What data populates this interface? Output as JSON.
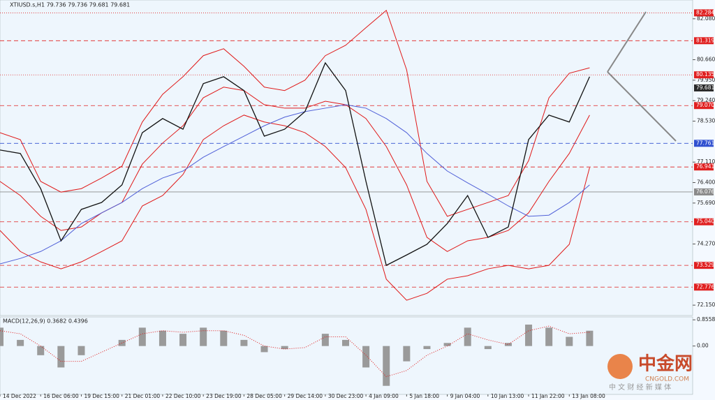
{
  "chart_data": [
    {
      "type": "line",
      "title": "XTIUSD.s,H1  79.736 79.736 79.681 79.681",
      "x": [
        0,
        2,
        4,
        6,
        8,
        10,
        12,
        14,
        16,
        18,
        20,
        22,
        24,
        26,
        28,
        30,
        32,
        34,
        36,
        38,
        40,
        42,
        44,
        46,
        48,
        50,
        52,
        54,
        56,
        58
      ],
      "xlim": [
        0,
        68
      ],
      "xticks": [
        {
          "value": 0,
          "label": "14 Dec 2022"
        },
        {
          "value": 4,
          "label": "16 Dec 06:00"
        },
        {
          "value": 8,
          "label": "19 Dec 15:00"
        },
        {
          "value": 12,
          "label": "21 Dec 01:00"
        },
        {
          "value": 16,
          "label": "22 Dec 10:00"
        },
        {
          "value": 20,
          "label": "23 Dec 19:00"
        },
        {
          "value": 24,
          "label": "28 Dec 05:00"
        },
        {
          "value": 28,
          "label": "29 Dec 14:00"
        },
        {
          "value": 32,
          "label": "30 Dec 23:00"
        },
        {
          "value": 36,
          "label": "4 Jan 09:00"
        },
        {
          "value": 40,
          "label": "5 Jan 18:00"
        },
        {
          "value": 44,
          "label": "9 Jan 04:00"
        },
        {
          "value": 48,
          "label": "10 Jan 13:00"
        },
        {
          "value": 52,
          "label": "11 Jan 22:00"
        },
        {
          "value": 56,
          "label": "13 Jan 08:00"
        }
      ],
      "ylim": [
        71.79,
        82.73
      ],
      "yticks": [
        {
          "value": 82.08,
          "label": "82.080"
        },
        {
          "value": 80.66,
          "label": "80.660"
        },
        {
          "value": 79.95,
          "label": "79.950"
        },
        {
          "value": 79.24,
          "label": "79.240"
        },
        {
          "value": 78.53,
          "label": "78.530"
        },
        {
          "value": 77.11,
          "label": "77.110"
        },
        {
          "value": 76.4,
          "label": "76.400"
        },
        {
          "value": 75.69,
          "label": "75.690"
        },
        {
          "value": 74.27,
          "label": "74.270"
        },
        {
          "value": 72.15,
          "label": "72.150"
        }
      ],
      "levels": [
        {
          "value": 82.284,
          "color": "#e02020",
          "style": "dotted"
        },
        {
          "value": 81.319,
          "color": "#e02020",
          "style": "dashed"
        },
        {
          "value": 80.135,
          "color": "#e02020",
          "style": "dotted"
        },
        {
          "value": 79.681,
          "color": "#2a2a2a",
          "style": "none"
        },
        {
          "value": 79.07,
          "label": "79.070",
          "color": "#e02020",
          "style": "dashed"
        },
        {
          "value": 77.761,
          "color": "#3050d0",
          "style": "dashed"
        },
        {
          "value": 76.941,
          "color": "#e02020",
          "style": "dashed"
        },
        {
          "value": 76.076,
          "color": "#8a8a8a",
          "style": "solid"
        },
        {
          "value": 75.04,
          "label": "75.040",
          "color": "#e02020",
          "style": "dashed"
        },
        {
          "value": 73.529,
          "color": "#e02020",
          "style": "dashed"
        },
        {
          "value": 72.776,
          "color": "#e02020",
          "style": "dashed"
        }
      ],
      "series": [
        {
          "color": "#e01818",
          "values": [
            78.13,
            77.89,
            76.44,
            76.07,
            76.19,
            76.56,
            76.97,
            78.5,
            79.46,
            80.07,
            80.8,
            81.04,
            80.43,
            79.71,
            79.59,
            79.95,
            80.8,
            81.16,
            81.77,
            82.37,
            80.31,
            76.44,
            75.23,
            75.47,
            75.71,
            75.95,
            77.16,
            79.34,
            80.19,
            80.38
          ]
        },
        {
          "color": "#e01818",
          "values": [
            76.44,
            75.95,
            75.23,
            74.74,
            74.86,
            75.35,
            75.71,
            77.04,
            77.77,
            78.37,
            79.34,
            79.71,
            79.59,
            79.1,
            78.98,
            78.98,
            79.22,
            79.1,
            78.62,
            77.65,
            76.32,
            74.5,
            74.01,
            74.38,
            74.5,
            74.74,
            75.35,
            76.44,
            77.41,
            78.74
          ]
        },
        {
          "color": "#e01818",
          "values": [
            74.74,
            74.01,
            73.65,
            73.41,
            73.65,
            74.01,
            74.38,
            75.59,
            75.95,
            76.68,
            77.89,
            78.37,
            78.74,
            78.5,
            78.37,
            78.13,
            77.65,
            76.92,
            75.47,
            73.05,
            72.32,
            72.56,
            73.05,
            73.17,
            73.41,
            73.53,
            73.41,
            73.53,
            74.26,
            76.92
          ]
        },
        {
          "color": "#5060d8",
          "values": [
            73.58,
            73.77,
            74.01,
            74.38,
            74.98,
            75.35,
            75.71,
            76.19,
            76.56,
            76.8,
            77.28,
            77.65,
            78.01,
            78.37,
            78.67,
            78.86,
            78.98,
            79.1,
            78.98,
            78.62,
            78.13,
            77.41,
            76.8,
            76.39,
            76.0,
            75.59,
            75.23,
            75.27,
            75.71,
            76.32
          ]
        },
        {
          "color": "#111111",
          "values": [
            77.53,
            77.41,
            76.19,
            74.38,
            75.47,
            75.71,
            76.32,
            78.13,
            78.62,
            78.25,
            79.83,
            80.07,
            79.59,
            78.01,
            78.25,
            78.86,
            80.55,
            79.59,
            76.44,
            73.53,
            73.89,
            74.26,
            74.98,
            75.95,
            74.5,
            74.86,
            77.89,
            78.74,
            78.5,
            80.07
          ]
        }
      ]
    },
    {
      "type": "macd",
      "title": "MACD(12,26,9) 0.3682 0.4396",
      "x": [
        0,
        2,
        4,
        6,
        8,
        10,
        12,
        14,
        16,
        18,
        20,
        22,
        24,
        26,
        28,
        30,
        32,
        34,
        36,
        38,
        40,
        42,
        44,
        46,
        48,
        50,
        52,
        54,
        56,
        58
      ],
      "xlim": [
        0,
        68
      ],
      "ylim": [
        -1.58,
        0.95
      ],
      "yticks": [
        0.8558,
        {
          "value": 0,
          "label": "0.00"
        }
      ],
      "series": [
        {
          "color": "#9a9a9a",
          "style": "bar",
          "values": [
            0.6,
            0.2,
            -0.3,
            -0.7,
            -0.3,
            0.0,
            0.2,
            0.6,
            0.5,
            0.4,
            0.6,
            0.5,
            0.2,
            -0.2,
            -0.1,
            0.0,
            0.4,
            0.2,
            -0.7,
            -1.3,
            -0.5,
            -0.1,
            0.1,
            0.6,
            -0.1,
            0.1,
            0.7,
            0.6,
            0.3,
            0.5
          ]
        },
        {
          "color": "#e01818",
          "style": "dotted",
          "values": [
            0.5,
            0.4,
            0.0,
            -0.5,
            -0.5,
            -0.2,
            0.1,
            0.4,
            0.5,
            0.45,
            0.5,
            0.5,
            0.35,
            0.0,
            -0.1,
            -0.05,
            0.3,
            0.3,
            -0.3,
            -1.0,
            -0.8,
            -0.3,
            0.0,
            0.4,
            0.2,
            0.05,
            0.5,
            0.65,
            0.4,
            0.45
          ]
        }
      ]
    }
  ],
  "watermark": {
    "logo": "中金网",
    "site": "CNGOLD.COM",
    "tagline": "中 文 财 经 新 媒 体"
  }
}
